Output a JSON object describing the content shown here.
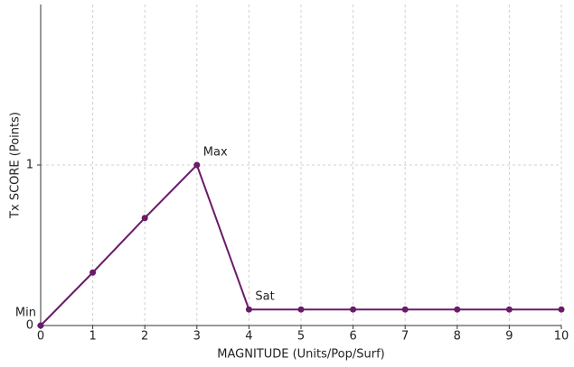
{
  "chart_data": {
    "type": "line",
    "x": [
      0,
      1,
      2,
      3,
      4,
      5,
      6,
      7,
      8,
      9,
      10
    ],
    "series": [
      {
        "color": "#6a1b6a",
        "values": [
          0,
          0.33,
          0.67,
          1,
          0.1,
          0.1,
          0.1,
          0.1,
          0.1,
          0.1,
          0.1
        ]
      }
    ],
    "xlabel": "MAGNITUDE (Units/Pop/Surf)",
    "ylabel": "Tx SCORE (Points)",
    "xlim": [
      0,
      10
    ],
    "xticks": [
      0,
      1,
      2,
      3,
      4,
      5,
      6,
      7,
      8,
      9,
      10
    ],
    "ylim": [
      0,
      2
    ],
    "yticks": [
      0,
      1
    ],
    "grid": true,
    "annotations": [
      {
        "text": "Min",
        "x": 0,
        "y": 0
      },
      {
        "text": "Max",
        "x": 3,
        "y": 1
      },
      {
        "text": "Sat",
        "x": 4,
        "y": 0.1
      }
    ]
  }
}
